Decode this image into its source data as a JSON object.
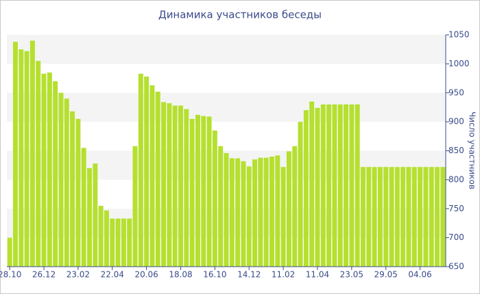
{
  "chart_data": {
    "type": "bar",
    "title": "Динамика участников беседы",
    "y_label": "Число участников",
    "color": "#b5e02f",
    "ylim": [
      650,
      1050
    ],
    "yticks": [
      650,
      700,
      750,
      800,
      850,
      900,
      950,
      1000,
      1050
    ],
    "categories": [
      "28.10",
      null,
      null,
      null,
      null,
      null,
      "26.12",
      null,
      null,
      null,
      null,
      null,
      "23.02",
      null,
      null,
      null,
      null,
      null,
      "22.04",
      null,
      null,
      null,
      null,
      null,
      "20.06",
      null,
      null,
      null,
      null,
      null,
      "18.08",
      null,
      null,
      null,
      null,
      null,
      "16.10",
      null,
      null,
      null,
      null,
      null,
      "14.12",
      null,
      null,
      null,
      null,
      null,
      "11.02",
      null,
      null,
      null,
      null,
      null,
      "11.04",
      null,
      null,
      null,
      null,
      null,
      "23.05",
      null,
      null,
      null,
      null,
      null,
      "29.05",
      null,
      null,
      null,
      null,
      null,
      "04.06",
      null,
      null,
      null,
      null
    ],
    "values": [
      700,
      1038,
      1025,
      1022,
      1040,
      1005,
      983,
      985,
      970,
      950,
      940,
      918,
      905,
      855,
      820,
      828,
      755,
      747,
      733,
      733,
      733,
      733,
      858,
      983,
      978,
      963,
      952,
      934,
      932,
      928,
      928,
      922,
      905,
      912,
      910,
      909,
      885,
      858,
      846,
      837,
      837,
      832,
      823,
      835,
      838,
      838,
      840,
      842,
      822,
      849,
      858,
      900,
      920,
      935,
      924,
      930,
      930,
      930,
      930,
      930,
      930,
      930,
      822,
      822,
      822,
      822,
      822,
      822,
      822,
      822,
      822,
      822,
      822,
      822,
      822,
      822,
      822
    ],
    "grid": "bands"
  }
}
